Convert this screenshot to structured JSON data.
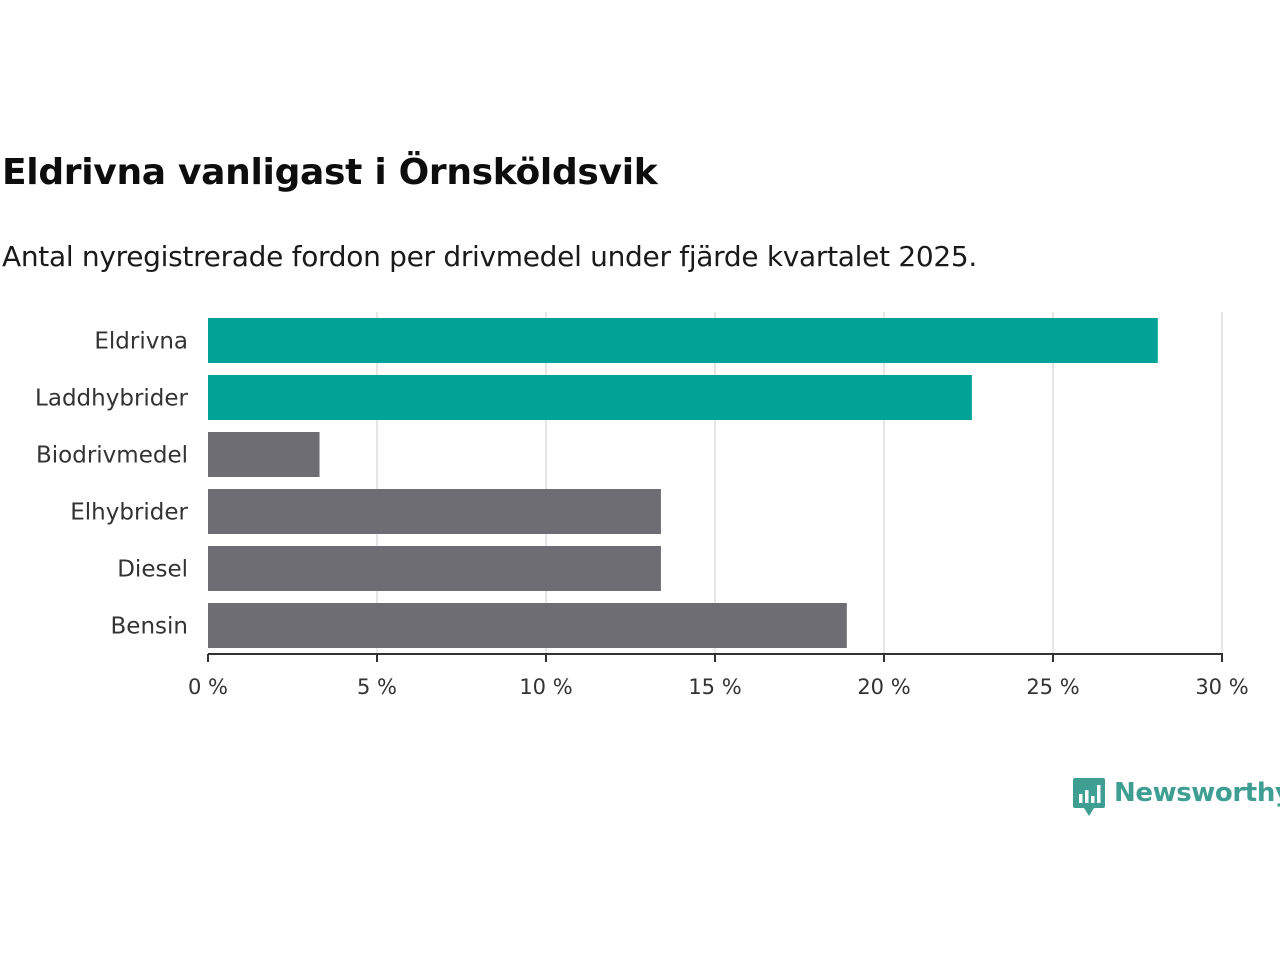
{
  "chart_data": {
    "type": "bar",
    "orientation": "horizontal",
    "title": "Eldrivna vanligast i Örnsköldsvik",
    "subtitle": "Antal nyregistrerade fordon per drivmedel under fjärde kvartalet 2025.",
    "categories": [
      "Eldrivna",
      "Laddhybrider",
      "Biodrivmedel",
      "Elhybrider",
      "Diesel",
      "Bensin"
    ],
    "values": [
      28.1,
      22.6,
      3.3,
      13.4,
      13.4,
      18.9
    ],
    "highlight": [
      true,
      true,
      false,
      false,
      false,
      false
    ],
    "xlim": [
      0,
      30
    ],
    "xticks": [
      0,
      5,
      10,
      15,
      20,
      25,
      30
    ],
    "xtick_labels": [
      "0 %",
      "5 %",
      "10 %",
      "15 %",
      "20 %",
      "25 %",
      "30 %"
    ],
    "xlabel": "",
    "ylabel": "",
    "grid": true,
    "colors": {
      "highlight": "#00a396",
      "default": "#6f6d74",
      "grid": "#dddddd",
      "axis": "#333333"
    }
  },
  "brand": {
    "name": "Newsworthy",
    "logo_icon": "chart-bubble-icon",
    "color": "#3f9e92"
  }
}
